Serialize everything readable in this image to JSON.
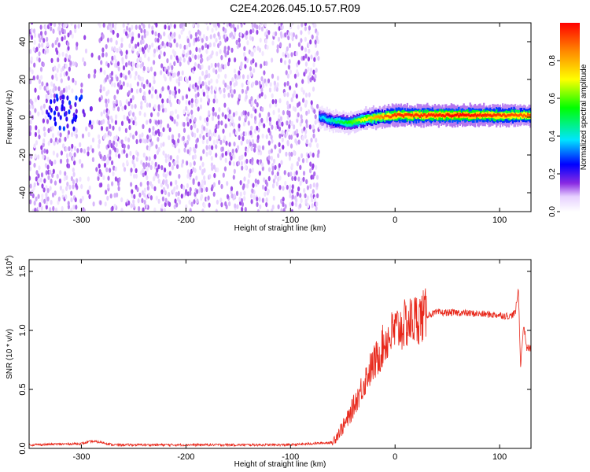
{
  "title": "C2E4.2026.045.10.57.R09",
  "chart_data": [
    {
      "type": "heatmap",
      "name": "spectrogram",
      "xlabel": "Height of straight line (km)",
      "ylabel": "Frequency (Hz)",
      "xlim": [
        -350,
        130
      ],
      "ylim": [
        -50,
        50
      ],
      "xticks": [
        -300,
        -200,
        -100,
        0,
        100
      ],
      "yticks": [
        -40,
        -20,
        0,
        20,
        40
      ],
      "xtick_labels": [
        "-300",
        "-200",
        "-100",
        "0",
        "100"
      ],
      "ytick_labels": [
        "-40",
        "-20",
        "0",
        "20",
        "40"
      ],
      "noise_region": {
        "x_start": -350,
        "x_end": -73,
        "level": 0.12
      },
      "clear_band": {
        "x_start": -305,
        "x_end": -285
      },
      "hot_spot": {
        "x": -310,
        "y": 3,
        "level": 0.22
      },
      "signal_track": [
        {
          "x": -73,
          "y": 0,
          "level": 0.35
        },
        {
          "x": -60,
          "y": -2,
          "level": 0.45
        },
        {
          "x": -45,
          "y": -3,
          "level": 0.55
        },
        {
          "x": -30,
          "y": -1,
          "level": 0.7
        },
        {
          "x": -15,
          "y": 0,
          "level": 0.85
        },
        {
          "x": 0,
          "y": 1,
          "level": 0.95
        },
        {
          "x": 30,
          "y": 1,
          "level": 0.95
        },
        {
          "x": 60,
          "y": 1,
          "level": 1.0
        },
        {
          "x": 90,
          "y": 1,
          "level": 0.95
        },
        {
          "x": 120,
          "y": 1,
          "level": 0.9
        },
        {
          "x": 130,
          "y": 1,
          "level": 0.9
        }
      ],
      "colorbar": {
        "label": "Normalized spectral amplitude",
        "range": [
          0,
          1
        ],
        "ticks": [
          0.0,
          0.2,
          0.4,
          0.6,
          0.8
        ],
        "tick_labels": [
          "0.0",
          "0.2",
          "0.4",
          "0.6",
          "0.8"
        ]
      }
    },
    {
      "type": "line",
      "name": "snr",
      "xlabel": "Height of straight line (km)",
      "ylabel": "SNR (10 * v/v)",
      "multiplier_label": "(x10",
      "multiplier_exp": "4",
      "multiplier_close": ")",
      "xlim": [
        -350,
        130
      ],
      "ylim": [
        0,
        1.6
      ],
      "xticks": [
        -300,
        -200,
        -100,
        0,
        100
      ],
      "yticks": [
        0.0,
        0.5,
        1.0,
        1.5
      ],
      "xtick_labels": [
        "-300",
        "-200",
        "-100",
        "0",
        "100"
      ],
      "ytick_labels": [
        "0.0",
        "0.5",
        "1.0",
        "1.5"
      ],
      "color": "#e8291c",
      "series": [
        {
          "name": "SNR",
          "x": [
            -350,
            -300,
            -290,
            -280,
            -270,
            -100,
            -60,
            -55,
            -50,
            -45,
            -40,
            -35,
            -30,
            -25,
            -20,
            -15,
            -10,
            -5,
            0,
            10,
            20,
            30,
            40,
            60,
            80,
            100,
            110,
            115,
            118,
            120,
            123,
            126,
            130
          ],
          "y": [
            0.03,
            0.04,
            0.06,
            0.05,
            0.03,
            0.03,
            0.05,
            0.12,
            0.18,
            0.25,
            0.35,
            0.45,
            0.55,
            0.65,
            0.72,
            0.8,
            0.9,
            0.95,
            1.0,
            1.05,
            1.1,
            1.13,
            1.15,
            1.15,
            1.14,
            1.13,
            1.12,
            1.15,
            1.35,
            0.7,
            1.05,
            0.85,
            0.85
          ]
        }
      ]
    }
  ]
}
